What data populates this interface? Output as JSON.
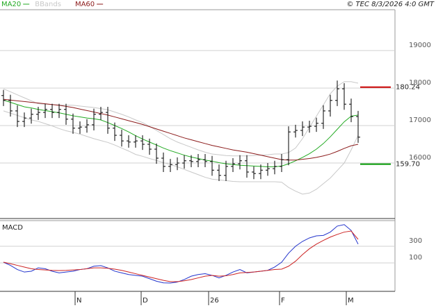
{
  "source": "© TEC 8/3/2026 4:0 GMT",
  "chart_data": [
    {
      "type": "ohlc",
      "open": [
        17800,
        17670,
        17390,
        17110,
        17200,
        17300,
        17350,
        17430,
        17350,
        17430,
        17170,
        16930,
        16960,
        17020,
        17300,
        17350,
        16930,
        16740,
        16590,
        16560,
        16590,
        16500,
        16370,
        16130,
        15910,
        15960,
        16000,
        16060,
        16040,
        16090,
        16040,
        15810,
        15670,
        15910,
        15980,
        16060,
        15760,
        15720,
        15810,
        15850,
        15910,
        16090,
        16830,
        16870,
        16960,
        16980,
        17060,
        17390,
        17670,
        17980,
        17570,
        17240
      ],
      "high": [
        17950,
        17820,
        17540,
        17350,
        17450,
        17500,
        17580,
        17580,
        17580,
        17580,
        17320,
        17110,
        17170,
        17450,
        17500,
        17500,
        17080,
        16890,
        16740,
        16740,
        16740,
        16650,
        16520,
        16280,
        16110,
        16150,
        16210,
        16210,
        16240,
        16240,
        16190,
        15960,
        16060,
        16130,
        16210,
        16210,
        15910,
        15960,
        16000,
        16060,
        16240,
        16980,
        17020,
        17110,
        17130,
        17210,
        17540,
        17820,
        18200,
        18130,
        17720,
        17390
      ],
      "low": [
        17520,
        17240,
        16960,
        16960,
        17050,
        17150,
        17200,
        17200,
        17200,
        17020,
        16780,
        16780,
        16810,
        16870,
        17150,
        16780,
        16590,
        16440,
        16410,
        16410,
        16350,
        16220,
        15980,
        15760,
        15760,
        15810,
        15850,
        15890,
        15890,
        15890,
        15660,
        15520,
        15520,
        15760,
        15830,
        15610,
        15570,
        15570,
        15660,
        15700,
        15760,
        15940,
        16680,
        16720,
        16810,
        16830,
        16910,
        17240,
        17520,
        17420,
        17090,
        16540
      ],
      "close": [
        17670,
        17390,
        17110,
        17200,
        17300,
        17350,
        17430,
        17350,
        17430,
        17170,
        16930,
        16960,
        17020,
        17300,
        17350,
        16930,
        16740,
        16590,
        16560,
        16590,
        16500,
        16370,
        16130,
        15910,
        15960,
        16000,
        16060,
        16040,
        16090,
        16040,
        15810,
        15670,
        15910,
        15980,
        16060,
        15760,
        15720,
        15810,
        15850,
        15910,
        16090,
        16830,
        16870,
        16960,
        16980,
        17060,
        17390,
        17670,
        17980,
        17570,
        17240,
        16690
      ],
      "bar_color": "#000000",
      "series": [
        {
          "name": "MA20",
          "color": "#22aa22",
          "values": [
            17680,
            17620,
            17560,
            17500,
            17470,
            17430,
            17400,
            17370,
            17340,
            17300,
            17260,
            17230,
            17200,
            17180,
            17150,
            17080,
            17000,
            16920,
            16830,
            16730,
            16640,
            16560,
            16480,
            16400,
            16330,
            16270,
            16210,
            16160,
            16120,
            16080,
            16050,
            16010,
            15980,
            15960,
            15940,
            15930,
            15920,
            15910,
            15900,
            15900,
            15920,
            15980,
            16060,
            16150,
            16250,
            16370,
            16520,
            16700,
            16900,
            17100,
            17250,
            17280
          ]
        },
        {
          "name": "BBands",
          "color": "#c8c8c8",
          "upper": [
            17980,
            17900,
            17820,
            17740,
            17660,
            17580,
            17570,
            17560,
            17550,
            17545,
            17540,
            17520,
            17500,
            17480,
            17450,
            17420,
            17360,
            17300,
            17230,
            17150,
            17080,
            16980,
            16870,
            16760,
            16650,
            16560,
            16490,
            16420,
            16350,
            16290,
            16240,
            16220,
            16200,
            16190,
            16190,
            16190,
            16200,
            16210,
            16220,
            16240,
            16240,
            16280,
            16400,
            16650,
            16950,
            17250,
            17550,
            17850,
            18050,
            18170,
            18170,
            18130
          ],
          "lower": [
            17390,
            17330,
            17270,
            17210,
            17150,
            17110,
            17050,
            16990,
            16920,
            16860,
            16820,
            16770,
            16710,
            16650,
            16600,
            16550,
            16480,
            16400,
            16320,
            16230,
            16180,
            16120,
            16070,
            16010,
            15960,
            15900,
            15830,
            15760,
            15690,
            15620,
            15570,
            15550,
            15530,
            15510,
            15500,
            15500,
            15500,
            15500,
            15500,
            15500,
            15490,
            15350,
            15250,
            15170,
            15200,
            15300,
            15450,
            15600,
            15800,
            16000,
            16350,
            16740
          ]
        },
        {
          "name": "MA60",
          "color": "#8b1a1a",
          "values": [
            17700,
            17680,
            17660,
            17640,
            17620,
            17600,
            17580,
            17560,
            17540,
            17510,
            17480,
            17440,
            17400,
            17360,
            17320,
            17280,
            17230,
            17180,
            17130,
            17080,
            17030,
            16970,
            16910,
            16850,
            16790,
            16730,
            16670,
            16620,
            16570,
            16520,
            16470,
            16430,
            16390,
            16350,
            16320,
            16290,
            16250,
            16210,
            16170,
            16130,
            16090,
            16080,
            16080,
            16100,
            16120,
            16150,
            16190,
            16240,
            16310,
            16390,
            16460,
            16500
          ]
        }
      ],
      "levels": [
        {
          "value": 18024,
          "label": "180.24",
          "color": "#cc0000"
        },
        {
          "value": 15970,
          "label": "159.70",
          "color": "#009900"
        }
      ],
      "xlim": [
        -0.5,
        56.3
      ],
      "ylim": [
        14520,
        20090
      ],
      "yticks": [
        16000,
        17000,
        18000,
        19000
      ],
      "grid": true
    },
    {
      "type": "line",
      "title": "MACD",
      "series": [
        {
          "color": "#2233cc",
          "values": [
            108,
            70,
            20,
            -10,
            0,
            40,
            30,
            0,
            -20,
            -10,
            0,
            20,
            30,
            60,
            67,
            40,
            0,
            -20,
            -40,
            -50,
            -60,
            -90,
            -120,
            -140,
            -142,
            -130,
            -100,
            -60,
            -40,
            -30,
            -50,
            -80,
            -50,
            -10,
            20,
            -20,
            -10,
            0,
            10,
            50,
            108,
            217,
            300,
            358,
            400,
            425,
            430,
            470,
            542,
            560,
            490,
            325
          ]
        },
        {
          "color": "#cc2222",
          "values": [
            108,
            90,
            70,
            50,
            30,
            20,
            15,
            10,
            8,
            10,
            15,
            20,
            30,
            40,
            40,
            35,
            25,
            10,
            -10,
            -30,
            -50,
            -70,
            -90,
            -110,
            -125,
            -125,
            -115,
            -100,
            -80,
            -60,
            -50,
            -60,
            -55,
            -40,
            -20,
            -15,
            -10,
            0,
            10,
            20,
            25,
            60,
            120,
            200,
            270,
            325,
            370,
            410,
            442,
            470,
            483,
            383
          ]
        }
      ],
      "xlim": [
        -0.5,
        56.3
      ],
      "ylim": [
        -242,
        608
      ],
      "yticks": [
        100,
        300
      ],
      "grid": true,
      "xticks": [
        {
          "value": 10.3,
          "label": "N"
        },
        {
          "value": 19.8,
          "label": "D"
        },
        {
          "value": 29.5,
          "label": "26"
        },
        {
          "value": 39.7,
          "label": "F"
        },
        {
          "value": 49.3,
          "label": "M"
        }
      ]
    }
  ]
}
